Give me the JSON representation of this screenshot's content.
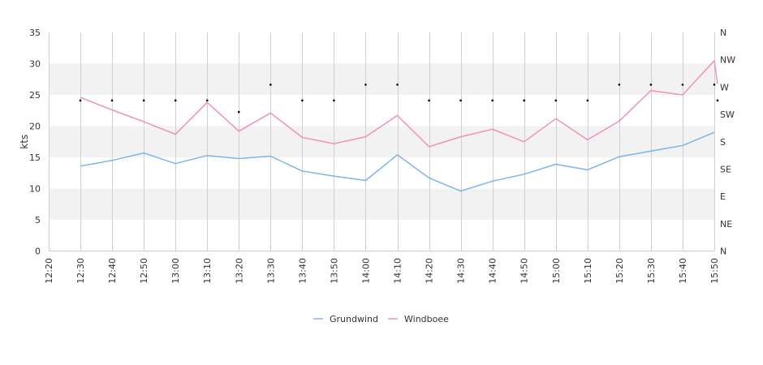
{
  "chart_data": {
    "type": "line",
    "ylabel": "kts",
    "ylim": [
      0,
      35
    ],
    "y_ticks": [
      "0",
      "5",
      "10",
      "15",
      "20",
      "25",
      "30",
      "35"
    ],
    "direction_axis": {
      "labels": [
        "N",
        "NE",
        "E",
        "SE",
        "S",
        "SW",
        "W",
        "NW",
        "N"
      ],
      "range": [
        0,
        360
      ]
    },
    "x_tick_labels": [
      "12:20",
      "12:30",
      "12:40",
      "12:50",
      "13:00",
      "13:10",
      "13:20",
      "13:30",
      "13:40",
      "13:50",
      "14:00",
      "14:10",
      "14:20",
      "14:30",
      "14:40",
      "14:50",
      "15:00",
      "15:10",
      "15:20",
      "15:30",
      "15:40",
      "15:50"
    ],
    "x_range_minutes": [
      "12:20",
      "15:50"
    ],
    "series": [
      {
        "name": "Grundwind",
        "color": "#7cb5ec",
        "points": [
          [
            "12:30",
            13.6
          ],
          [
            "12:40",
            14.5
          ],
          [
            "12:50",
            15.7
          ],
          [
            "13:00",
            14.0
          ],
          [
            "13:10",
            15.3
          ],
          [
            "13:20",
            14.8
          ],
          [
            "13:30",
            15.2
          ],
          [
            "13:40",
            12.8
          ],
          [
            "13:50",
            12.0
          ],
          [
            "14:00",
            11.3
          ],
          [
            "14:10",
            15.4
          ],
          [
            "14:20",
            11.7
          ],
          [
            "14:30",
            9.6
          ],
          [
            "14:40",
            11.2
          ],
          [
            "14:50",
            12.3
          ],
          [
            "15:00",
            13.9
          ],
          [
            "15:10",
            13.0
          ],
          [
            "15:20",
            15.1
          ],
          [
            "15:30",
            16.0
          ],
          [
            "15:40",
            16.9
          ],
          [
            "15:50",
            19.0
          ]
        ]
      },
      {
        "name": "Windboee",
        "color": "#f28fbf",
        "points": [
          [
            "12:30",
            24.6
          ],
          [
            "12:40",
            22.6
          ],
          [
            "12:50",
            20.7
          ],
          [
            "13:00",
            18.7
          ],
          [
            "13:10",
            23.8
          ],
          [
            "13:20",
            19.2
          ],
          [
            "13:30",
            22.1
          ],
          [
            "13:40",
            18.2
          ],
          [
            "13:50",
            17.2
          ],
          [
            "14:00",
            18.3
          ],
          [
            "14:10",
            21.7
          ],
          [
            "14:20",
            16.7
          ],
          [
            "14:30",
            18.3
          ],
          [
            "14:40",
            19.5
          ],
          [
            "14:50",
            17.5
          ],
          [
            "15:00",
            21.2
          ],
          [
            "15:10",
            17.8
          ],
          [
            "15:20",
            20.8
          ],
          [
            "15:30",
            25.7
          ],
          [
            "15:40",
            25.0
          ],
          [
            "15:50",
            30.5
          ],
          [
            "15:51",
            26.8
          ]
        ]
      }
    ],
    "direction_points": [
      [
        "12:30",
        248
      ],
      [
        "12:40",
        248
      ],
      [
        "12:50",
        248
      ],
      [
        "13:00",
        248
      ],
      [
        "13:10",
        248
      ],
      [
        "13:20",
        229
      ],
      [
        "13:30",
        274
      ],
      [
        "13:40",
        248
      ],
      [
        "13:50",
        248
      ],
      [
        "14:00",
        274
      ],
      [
        "14:10",
        274
      ],
      [
        "14:20",
        248
      ],
      [
        "14:30",
        248
      ],
      [
        "14:40",
        248
      ],
      [
        "14:50",
        248
      ],
      [
        "15:00",
        248
      ],
      [
        "15:10",
        248
      ],
      [
        "15:20",
        274
      ],
      [
        "15:30",
        274
      ],
      [
        "15:40",
        274
      ],
      [
        "15:50",
        274
      ],
      [
        "15:51",
        248
      ]
    ],
    "band_color": "#f2f2f2",
    "grid": "vertical",
    "legend": "bottom-center"
  }
}
